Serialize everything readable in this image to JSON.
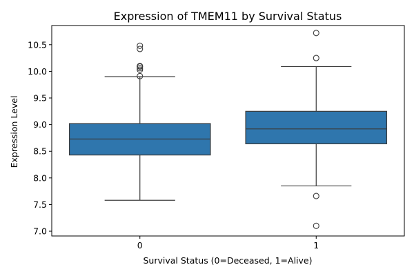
{
  "chart_data": {
    "type": "box",
    "title": "Expression of TMEM11 by Survival Status",
    "xlabel": "Survival Status (0=Deceased, 1=Alive)",
    "ylabel": "Expression Level",
    "categories": [
      "0",
      "1"
    ],
    "ylim": [
      6.91,
      10.86
    ],
    "yticks": [
      7.0,
      7.5,
      8.0,
      8.5,
      9.0,
      9.5,
      10.0,
      10.5
    ],
    "ytick_labels": [
      "7.0",
      "7.5",
      "8.0",
      "8.5",
      "9.0",
      "9.5",
      "10.0",
      "10.5"
    ],
    "grid": false,
    "series": [
      {
        "category": "0",
        "whisker_low": 7.58,
        "q1": 8.43,
        "median": 8.73,
        "q3": 9.02,
        "whisker_high": 9.9,
        "outliers": [
          9.91,
          10.03,
          10.06,
          10.09,
          10.1,
          10.42,
          10.48
        ]
      },
      {
        "category": "1",
        "whisker_low": 7.85,
        "q1": 8.64,
        "median": 8.92,
        "q3": 9.25,
        "whisker_high": 10.09,
        "outliers": [
          10.25,
          10.72,
          7.66,
          7.1
        ]
      }
    ],
    "colors": {
      "box_fill": "#2f76ad",
      "line": "#3b3b3b",
      "axis": "#000000"
    }
  }
}
